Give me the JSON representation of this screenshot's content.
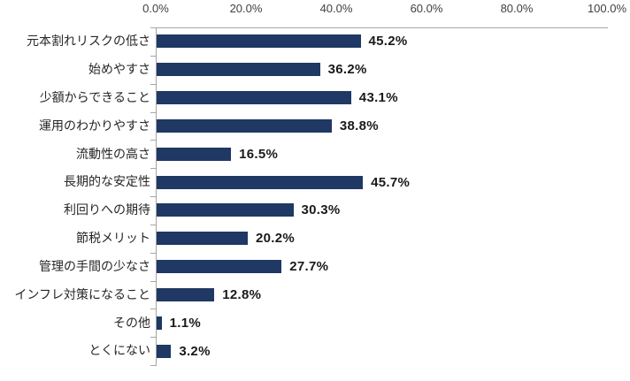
{
  "chart_data": {
    "type": "bar",
    "orientation": "horizontal",
    "title": "",
    "xlabel": "",
    "ylabel": "",
    "xlim": [
      0,
      100
    ],
    "x_axis_position": "top",
    "grid": false,
    "legend": false,
    "x_tick_labels": [
      "0.0%",
      "20.0%",
      "40.0%",
      "60.0%",
      "80.0%",
      "100.0%"
    ],
    "categories": [
      "元本割れリスクの低さ",
      "始めやすさ",
      "少額からできること",
      "運用のわかりやすさ",
      "流動性の高さ",
      "長期的な安定性",
      "利回りへの期待",
      "節税メリット",
      "管理の手間の少なさ",
      "インフレ対策になること",
      "その他",
      "とくにない"
    ],
    "values": [
      45.2,
      36.2,
      43.1,
      38.8,
      16.5,
      45.7,
      30.3,
      20.2,
      27.7,
      12.8,
      1.1,
      3.2
    ],
    "data_labels": [
      "45.2%",
      "36.2%",
      "43.1%",
      "38.8%",
      "16.5%",
      "45.7%",
      "30.3%",
      "20.2%",
      "27.7%",
      "12.8%",
      "1.1%",
      "3.2%"
    ],
    "colors": {
      "bar": "#1F3864",
      "axis_line": "#A6A6A6",
      "tick_label": "#404040",
      "category_label": "#262626",
      "data_label": "#1A1A1A"
    }
  }
}
